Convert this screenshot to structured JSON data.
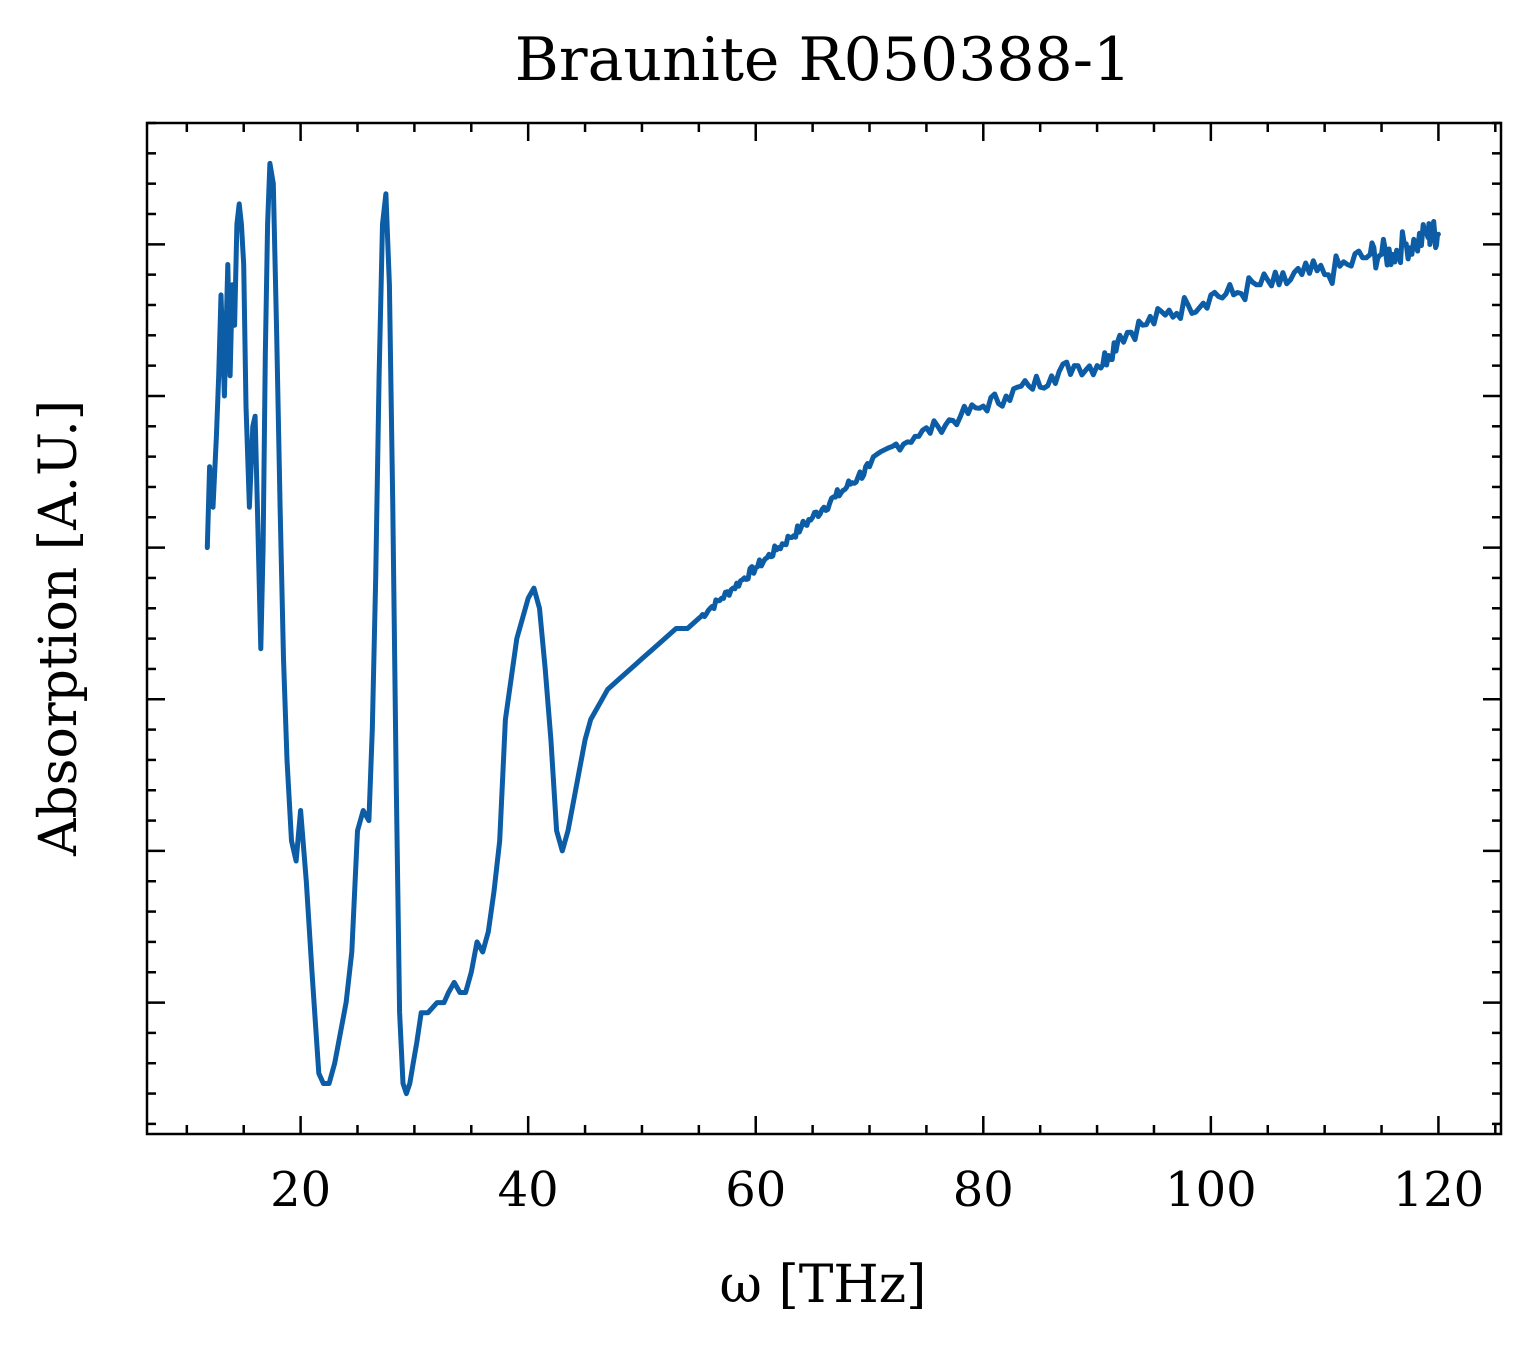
{
  "chart_data": {
    "type": "line",
    "title": "Braunite R050388-1",
    "xlabel": "ω [THz]",
    "ylabel": "Absorption [A.U.]",
    "xlim": [
      6.5,
      125.5
    ],
    "ylim": [
      0.0,
      1.0
    ],
    "x_ticks": [
      20,
      40,
      60,
      80,
      100,
      120
    ],
    "x_tick_labels": [
      "20",
      "40",
      "60",
      "80",
      "100",
      "120"
    ],
    "x_minor_ticks": [
      10,
      15,
      25,
      30,
      35,
      45,
      50,
      55,
      65,
      70,
      75,
      85,
      90,
      95,
      105,
      110,
      115,
      125
    ],
    "y_major_ticks": [
      0.13,
      0.28,
      0.43,
      0.58,
      0.73,
      0.88
    ],
    "y_minor_step": 0.03,
    "y_tick_labels_visible": false,
    "grid": false,
    "legend": "none",
    "color": "#0C5DA5",
    "series": [
      {
        "x": [
          11.8,
          12.0,
          12.3,
          12.6,
          12.8,
          13.0,
          13.3,
          13.6,
          13.8,
          14.0,
          14.2,
          14.4,
          14.6,
          14.8,
          15.0,
          15.2,
          15.5,
          15.8,
          16.0,
          16.2,
          16.5,
          16.7,
          16.9,
          17.1,
          17.3,
          17.6,
          17.9,
          18.2,
          18.5,
          18.8,
          19.2,
          19.6,
          20.0,
          20.5,
          21.0,
          21.3,
          21.6,
          22.0,
          22.5,
          23.0,
          23.5,
          24.0,
          24.5,
          25.0,
          25.5,
          26.0,
          26.3,
          26.6,
          26.9,
          27.2,
          27.5,
          27.8,
          28.1,
          28.4,
          28.7,
          29.0,
          29.3,
          29.6,
          29.9,
          30.2,
          30.6,
          31.2,
          32.0,
          32.6,
          33.0,
          33.5,
          34.0,
          34.5,
          35.0,
          35.5,
          36.0,
          36.5,
          37.0,
          37.5,
          38.0,
          39.0,
          40.0,
          40.5,
          41.0,
          41.5,
          42.0,
          42.5,
          43.0,
          43.5,
          44.0,
          44.5,
          45.0,
          45.5,
          46.0,
          46.5,
          47.0,
          48.0,
          49.0,
          50.0,
          51.0,
          52.0,
          53.0,
          54.0,
          55.0,
          56.0,
          57.0,
          58.0,
          59.0,
          60.0,
          61.0,
          62.0,
          63.0,
          64.0,
          65.0,
          66.0,
          67.0,
          68.0,
          69.0,
          70.0,
          72.0,
          74.0,
          76.0,
          78.0,
          80.0,
          82.0,
          84.0,
          86.0,
          88.0,
          90.0,
          91.0,
          92.0,
          94.0,
          96.0,
          98.0,
          100.0,
          102.0,
          104.0,
          106.0,
          108.0,
          110.0,
          112.0,
          114.0,
          115.0,
          116.0,
          117.0,
          118.0,
          119.0,
          119.5,
          120.0
        ],
        "y": [
          0.58,
          0.66,
          0.62,
          0.69,
          0.75,
          0.83,
          0.73,
          0.86,
          0.75,
          0.84,
          0.8,
          0.9,
          0.92,
          0.9,
          0.86,
          0.72,
          0.62,
          0.7,
          0.71,
          0.62,
          0.48,
          0.58,
          0.77,
          0.9,
          0.96,
          0.94,
          0.79,
          0.62,
          0.47,
          0.37,
          0.29,
          0.27,
          0.32,
          0.25,
          0.16,
          0.11,
          0.06,
          0.05,
          0.05,
          0.07,
          0.1,
          0.13,
          0.18,
          0.3,
          0.32,
          0.31,
          0.4,
          0.55,
          0.75,
          0.9,
          0.93,
          0.84,
          0.62,
          0.35,
          0.12,
          0.05,
          0.04,
          0.05,
          0.07,
          0.09,
          0.12,
          0.12,
          0.13,
          0.13,
          0.14,
          0.15,
          0.14,
          0.14,
          0.16,
          0.19,
          0.18,
          0.2,
          0.24,
          0.29,
          0.41,
          0.49,
          0.53,
          0.54,
          0.52,
          0.46,
          0.39,
          0.3,
          0.28,
          0.3,
          0.33,
          0.36,
          0.39,
          0.41,
          0.42,
          0.43,
          0.44,
          0.45,
          0.46,
          0.47,
          0.48,
          0.49,
          0.5,
          0.5,
          0.51,
          0.52,
          0.53,
          0.54,
          0.55,
          0.56,
          0.57,
          0.58,
          0.59,
          0.6,
          0.61,
          0.62,
          0.63,
          0.64,
          0.65,
          0.66,
          0.68,
          0.69,
          0.7,
          0.71,
          0.72,
          0.73,
          0.74,
          0.75,
          0.76,
          0.76,
          0.77,
          0.79,
          0.8,
          0.81,
          0.82,
          0.83,
          0.83,
          0.84,
          0.84,
          0.85,
          0.85,
          0.86,
          0.87,
          0.87,
          0.87,
          0.88,
          0.88,
          0.89,
          0.89,
          0.89
        ]
      }
    ]
  }
}
